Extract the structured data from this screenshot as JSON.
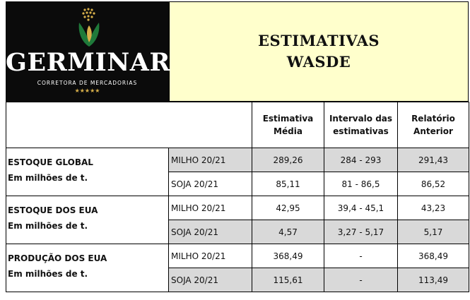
{
  "logo": {
    "brand": "GERMINAR",
    "subtitle": "CORRETORA DE MERCADORIAS",
    "stars": "★★★★★"
  },
  "title": {
    "line1": "ESTIMATIVAS",
    "line2": "WASDE"
  },
  "columns": {
    "col1_line1": "Estimativa",
    "col1_line2": "Média",
    "col2_line1": "Intervalo das",
    "col2_line2": "estimativas",
    "col3_line1": "Relatório",
    "col3_line2": "Anterior"
  },
  "groups": [
    {
      "label": "ESTOQUE GLOBAL",
      "unit": "Em milhões de t.",
      "rows": [
        {
          "crop": "MILHO 20/21",
          "media": "289,26",
          "intervalo": "284 - 293",
          "anterior": "291,43"
        },
        {
          "crop": "SOJA 20/21",
          "media": "85,11",
          "intervalo": "81 - 86,5",
          "anterior": "86,52"
        }
      ]
    },
    {
      "label": "ESTOQUE DOS EUA",
      "unit": "Em milhões de t.",
      "rows": [
        {
          "crop": "MILHO 20/21",
          "media": "42,95",
          "intervalo": "39,4 - 45,1",
          "anterior": "43,23"
        },
        {
          "crop": "SOJA 20/21",
          "media": "4,57",
          "intervalo": "3,27 - 5,17",
          "anterior": "5,17"
        }
      ]
    },
    {
      "label": "PRODUÇÃO DOS EUA",
      "unit": "Em milhões de t.",
      "rows": [
        {
          "crop": "MILHO 20/21",
          "media": "368,49",
          "intervalo": "-",
          "anterior": "368,49"
        },
        {
          "crop": "SOJA 20/21",
          "media": "115,61",
          "intervalo": "-",
          "anterior": "113,49"
        }
      ]
    }
  ]
}
